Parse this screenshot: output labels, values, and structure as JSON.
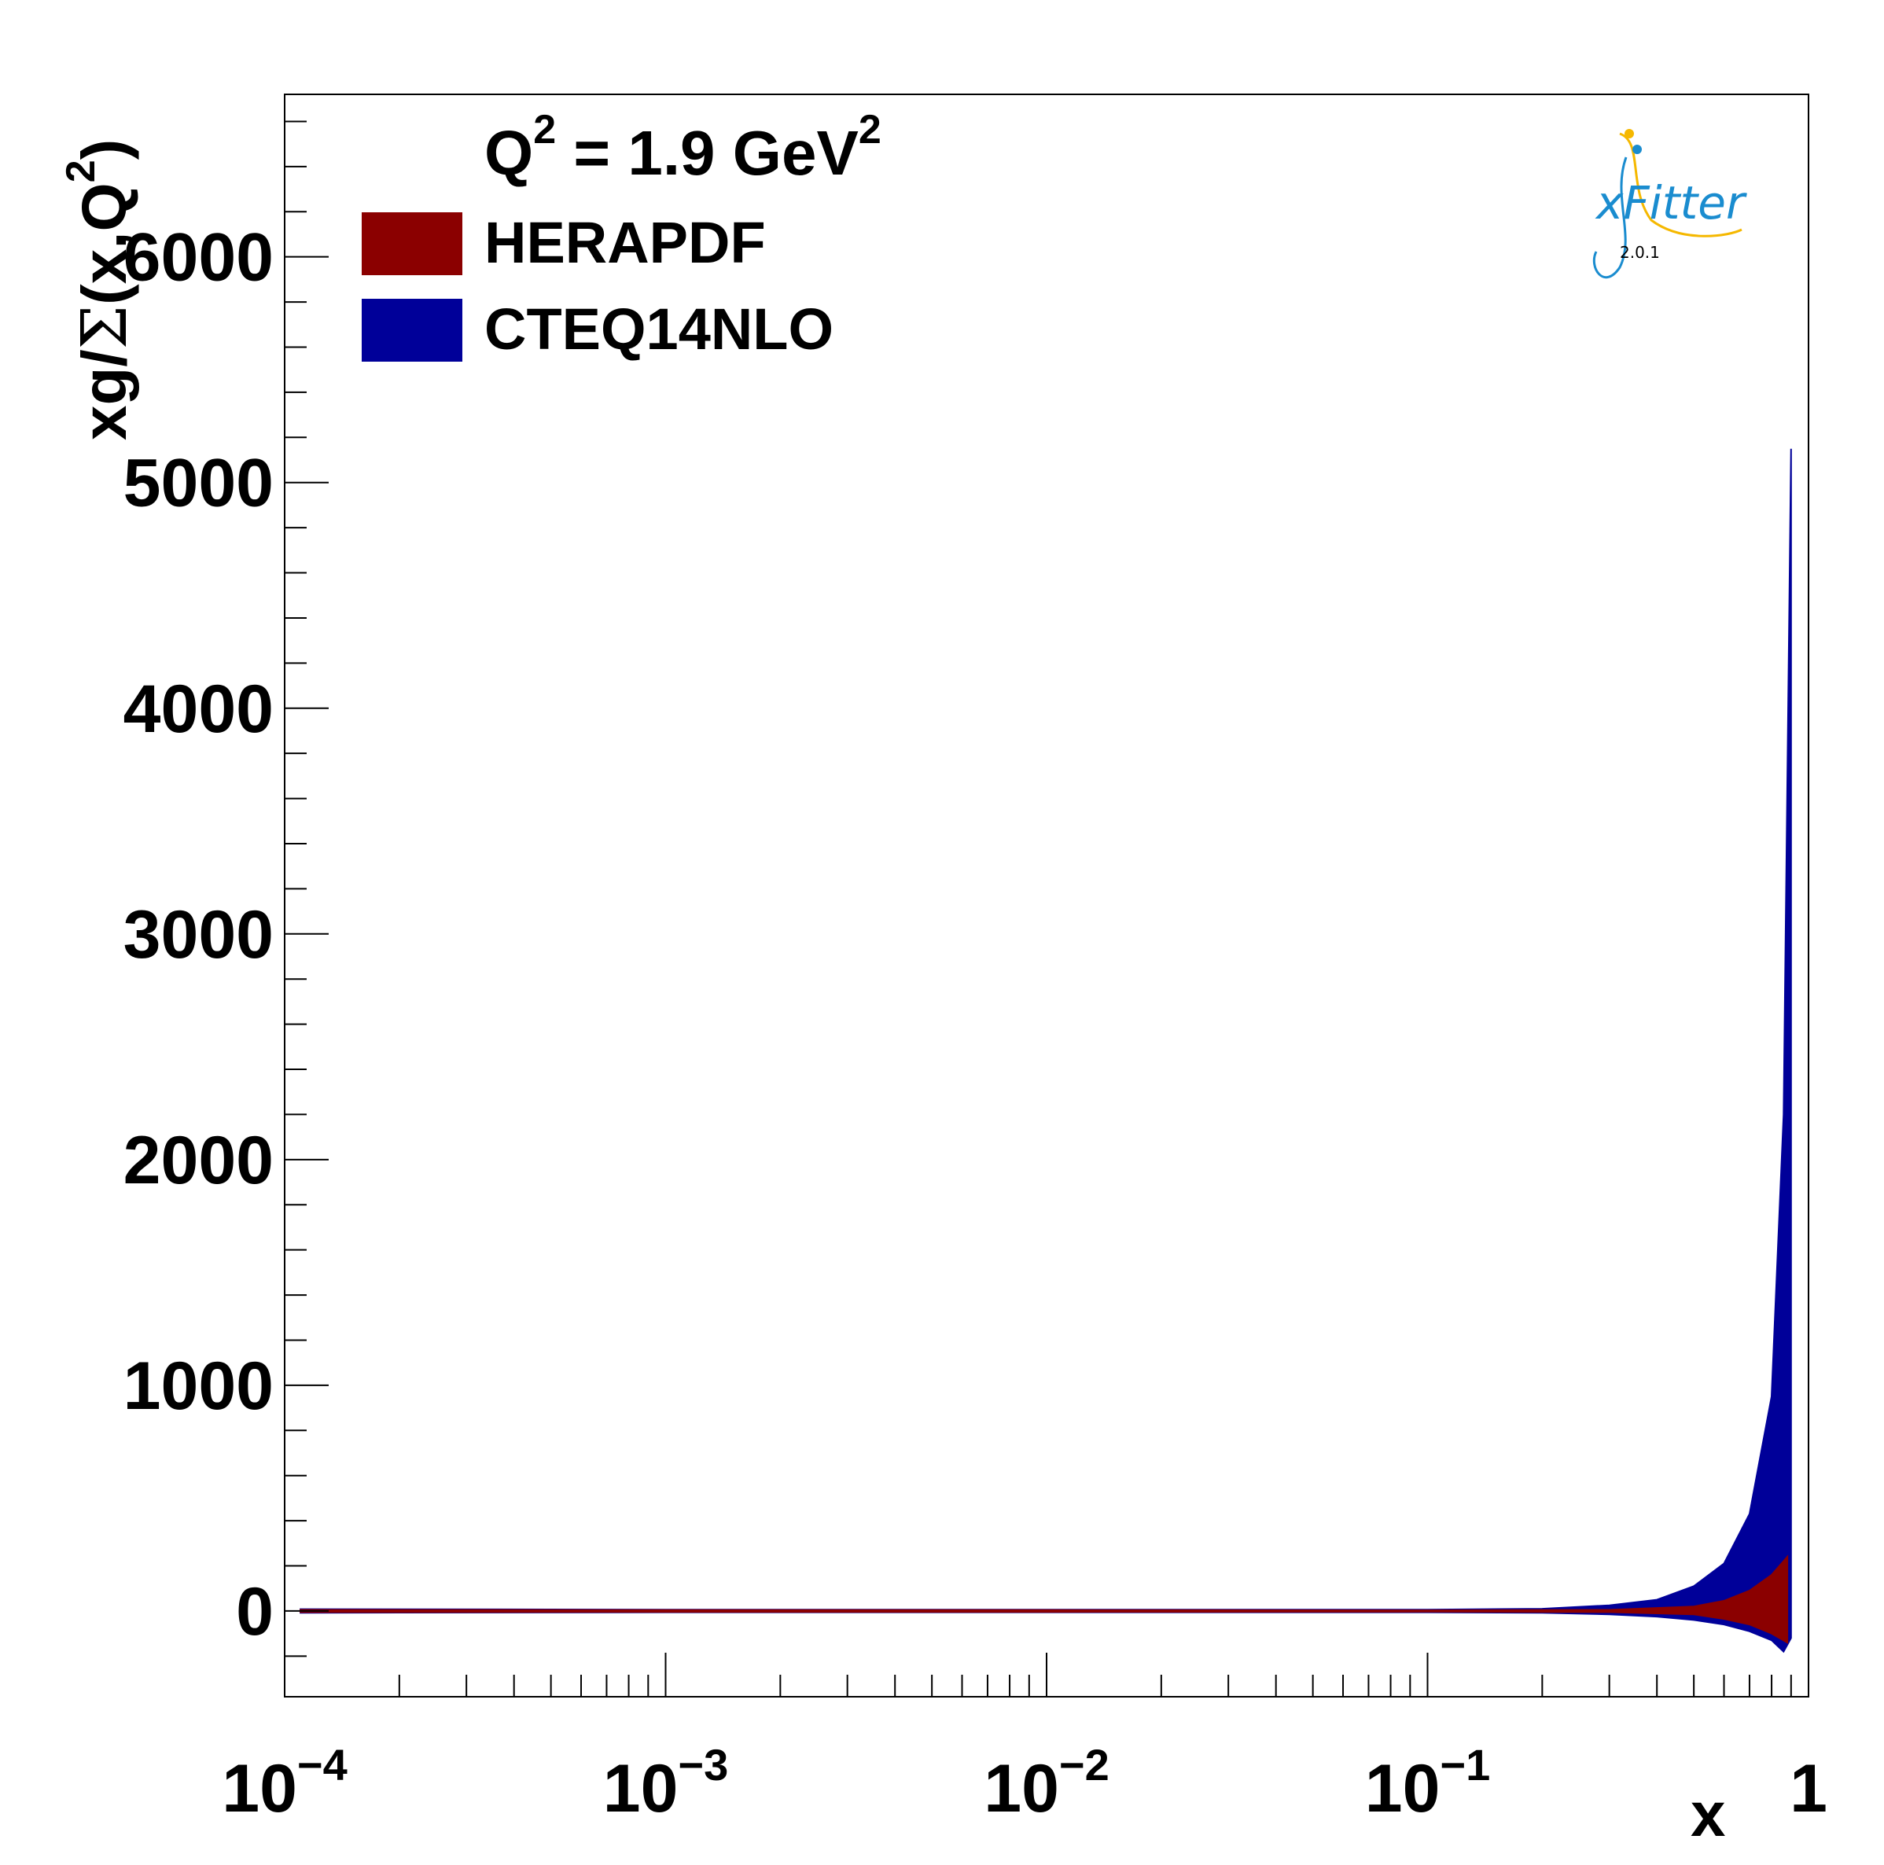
{
  "chart_data": {
    "type": "area",
    "annotation": {
      "q_prefix": "Q",
      "q_exp": "2",
      "q_value": " = 1.9 GeV",
      "unit_exp": "2"
    },
    "xlabel": "x",
    "ylabel": {
      "prefix": "xg/",
      "sigma": "Σ",
      "args": "(x,Q",
      "exp": "2",
      "close": ")"
    },
    "x_scale": "log",
    "xlim": [
      0.0001,
      1
    ],
    "ylim": [
      -380,
      6720
    ],
    "x_ticks": [
      {
        "value": 0.0001,
        "base": "10",
        "exp": "−4"
      },
      {
        "value": 0.001,
        "base": "10",
        "exp": "−3"
      },
      {
        "value": 0.01,
        "base": "10",
        "exp": "−2"
      },
      {
        "value": 0.1,
        "base": "10",
        "exp": "−1"
      },
      {
        "value": 1,
        "base": "1",
        "exp": ""
      }
    ],
    "y_ticks": [
      {
        "value": 0,
        "label": "0"
      },
      {
        "value": 1000,
        "label": "1000"
      },
      {
        "value": 2000,
        "label": "2000"
      },
      {
        "value": 3000,
        "label": "3000"
      },
      {
        "value": 4000,
        "label": "4000"
      },
      {
        "value": 5000,
        "label": "5000"
      },
      {
        "value": 6000,
        "label": "6000"
      }
    ],
    "legend_position": "top-left",
    "series": [
      {
        "name": "HERAPDF",
        "color": "#8b0000",
        "x": [
          0.00011,
          0.001,
          0.01,
          0.1,
          0.3,
          0.5,
          0.6,
          0.7,
          0.8,
          0.88
        ],
        "upper": [
          5,
          4,
          4,
          3,
          5,
          20,
          45,
          90,
          160,
          240
        ],
        "lower": [
          -5,
          -4,
          -4,
          -3,
          -5,
          -15,
          -35,
          -60,
          -100,
          -140
        ]
      },
      {
        "name": "CTEQ14NLO",
        "color": "#000099",
        "x": [
          0.00011,
          0.001,
          0.01,
          0.1,
          0.2,
          0.3,
          0.4,
          0.5,
          0.6,
          0.7,
          0.8,
          0.86,
          0.9
        ],
        "upper": [
          8,
          6,
          6,
          6,
          10,
          25,
          50,
          110,
          210,
          430,
          950,
          2200,
          5150
        ],
        "lower": [
          -8,
          -6,
          -6,
          -6,
          -8,
          -15,
          -25,
          -40,
          -60,
          -90,
          -130,
          -180,
          -120
        ]
      }
    ]
  },
  "logo": {
    "name": "xFitter",
    "version": "2.0.1",
    "primary_color": "#1a8ccf",
    "accent_color": "#f5b800"
  }
}
